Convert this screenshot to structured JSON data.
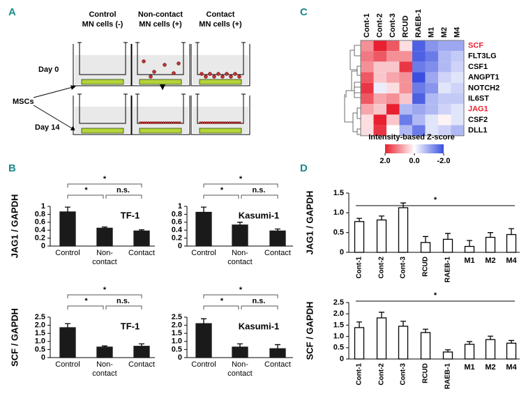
{
  "panels": [
    "A",
    "B",
    "C",
    "D"
  ],
  "schematic": {
    "columns": [
      [
        "Control",
        "MN cells (-)"
      ],
      [
        "Non-contact",
        "MN cells (+)"
      ],
      [
        "Contact",
        "MN cells (+)"
      ]
    ],
    "rows": [
      "Day 0",
      "Day 14"
    ],
    "cell_label": "MSCs"
  },
  "chart_data": [
    {
      "type": "bar",
      "title": "TF-1",
      "ylabel": "JAG1 / GAPDH",
      "categories": [
        "Control",
        "Non-contact",
        "Contact"
      ],
      "values": [
        0.86,
        0.45,
        0.38
      ],
      "errors": [
        0.12,
        0.03,
        0.03
      ],
      "color": "#1a1a1a",
      "ylim": [
        0,
        1
      ],
      "yticks": [
        0,
        0.2,
        0.4,
        0.6,
        0.8,
        1
      ],
      "annotations": [
        "*",
        "*",
        "n.s."
      ]
    },
    {
      "type": "bar",
      "title": "Kasumi-1",
      "categories": [
        "Control",
        "Non-contact",
        "Contact"
      ],
      "values": [
        0.85,
        0.53,
        0.38
      ],
      "errors": [
        0.13,
        0.07,
        0.05
      ],
      "color": "#1a1a1a",
      "ylim": [
        0,
        1
      ],
      "yticks": [
        0,
        0.2,
        0.4,
        0.6,
        0.8,
        1
      ],
      "annotations": [
        "*",
        "*",
        "n.s."
      ]
    },
    {
      "type": "bar",
      "title": "TF-1",
      "ylabel": "SCF / GAPDH",
      "categories": [
        "Control",
        "Non-contact",
        "Contact"
      ],
      "values": [
        1.85,
        0.65,
        0.7
      ],
      "errors": [
        0.25,
        0.07,
        0.15
      ],
      "color": "#1a1a1a",
      "ylim": [
        0,
        2.5
      ],
      "yticks": [
        0,
        0.5,
        {
          "value": 1,
          "label": "1.0"
        },
        1.5,
        {
          "value": 2,
          "label": "2.0"
        },
        2.5
      ],
      "annotations": [
        "*",
        "*",
        "n.s."
      ]
    },
    {
      "type": "bar",
      "title": "Kasumi-1",
      "categories": [
        "Control",
        "Non-contact",
        "Contact"
      ],
      "values": [
        2.1,
        0.65,
        0.55
      ],
      "errors": [
        0.3,
        0.2,
        0.25
      ],
      "color": "#1a1a1a",
      "ylim": [
        0,
        2.5
      ],
      "yticks": [
        0,
        0.5,
        {
          "value": 1,
          "label": "1.0"
        },
        1.5,
        {
          "value": 2,
          "label": "2.0"
        },
        2.5
      ],
      "annotations": [
        "*",
        "*",
        "n.s."
      ]
    },
    {
      "type": "bar",
      "ylabel": "JAG1 / GAPDH",
      "categories": [
        "Cont-1",
        "Cont-2",
        "Cont-3",
        "RCUD",
        "RAEB-1",
        "M1",
        "M2",
        "M4"
      ],
      "values": [
        0.78,
        0.82,
        1.13,
        0.25,
        0.33,
        0.15,
        0.38,
        0.45
      ],
      "errors": [
        0.08,
        0.1,
        0.12,
        0.15,
        0.15,
        0.15,
        0.12,
        0.15
      ],
      "color": "#ffffff",
      "edgecolor": "#000000",
      "ylim": [
        0,
        1.5
      ],
      "yticks": [
        0,
        0.5,
        {
          "value": 1,
          "label": "1.0"
        },
        1.5
      ],
      "annotations": [
        "*"
      ]
    },
    {
      "type": "bar",
      "ylabel": "SCF / GAPDH",
      "categories": [
        "Cont-1",
        "Cont-2",
        "Cont-3",
        "RCUD",
        "RAEB-1",
        "M1",
        "M2",
        "M4"
      ],
      "values": [
        1.39,
        1.82,
        1.45,
        1.17,
        0.31,
        0.65,
        0.86,
        0.7
      ],
      "errors": [
        0.25,
        0.25,
        0.22,
        0.15,
        0.1,
        0.12,
        0.15,
        0.12
      ],
      "color": "#ffffff",
      "edgecolor": "#000000",
      "ylim": [
        0,
        2.5
      ],
      "yticks": [
        0,
        0.5,
        {
          "value": 1,
          "label": "1.0"
        },
        1.5,
        {
          "value": 2,
          "label": "2.0"
        },
        2.5
      ],
      "annotations": [
        "*"
      ]
    },
    {
      "type": "heatmap",
      "columns": [
        "Cont-1",
        "Cont-2",
        "Cont-3",
        "RCUD",
        "RAEB-1",
        "M1",
        "M2",
        "M4"
      ],
      "rows": [
        "SCF",
        "FLT3LG",
        "CSF1",
        "ANGPT1",
        "NOTCH2",
        "IL6ST",
        "JAG1",
        "CSF2",
        "DLL1"
      ],
      "row_colors": [
        "#e8202f",
        "#000000",
        "#000000",
        "#000000",
        "#000000",
        "#000000",
        "#e8202f",
        "#000000",
        "#000000"
      ],
      "values": [
        [
          1.0,
          2.0,
          1.5,
          0.3,
          -1.8,
          -1.2,
          -1.0,
          -1.0
        ],
        [
          1.2,
          1.5,
          1.0,
          1.0,
          -1.8,
          -1.5,
          -0.8,
          -0.6
        ],
        [
          1.0,
          0.5,
          0.5,
          1.8,
          -1.5,
          -1.3,
          -0.8,
          -0.5
        ],
        [
          1.5,
          0.5,
          0.8,
          1.0,
          -2.0,
          -1.0,
          -0.5,
          -0.3
        ],
        [
          1.8,
          -0.2,
          0.3,
          1.0,
          -1.5,
          -1.2,
          -0.3,
          -0.5
        ],
        [
          1.5,
          0.8,
          1.0,
          0.5,
          -1.8,
          -0.8,
          -0.6,
          -0.6
        ],
        [
          0.8,
          0.5,
          2.0,
          -0.8,
          -1.0,
          -0.8,
          -0.5,
          -0.3
        ],
        [
          0.3,
          2.0,
          0.5,
          -1.5,
          -0.8,
          -0.3,
          0.1,
          -0.3
        ],
        [
          0.3,
          1.8,
          0.0,
          -0.8,
          -1.5,
          -0.3,
          -0.5,
          -0.8
        ]
      ],
      "zlabel": "Intensity-based Z-score",
      "zlim": [
        2,
        -2
      ],
      "zticks": [
        {
          "value": 2,
          "label": "2.0"
        },
        {
          "value": 0,
          "label": "0.0"
        },
        {
          "value": -2,
          "label": "-2.0"
        }
      ],
      "high_color": "#e8202f",
      "mid_color": "#ffffff",
      "low_color": "#3a4fe0"
    }
  ]
}
